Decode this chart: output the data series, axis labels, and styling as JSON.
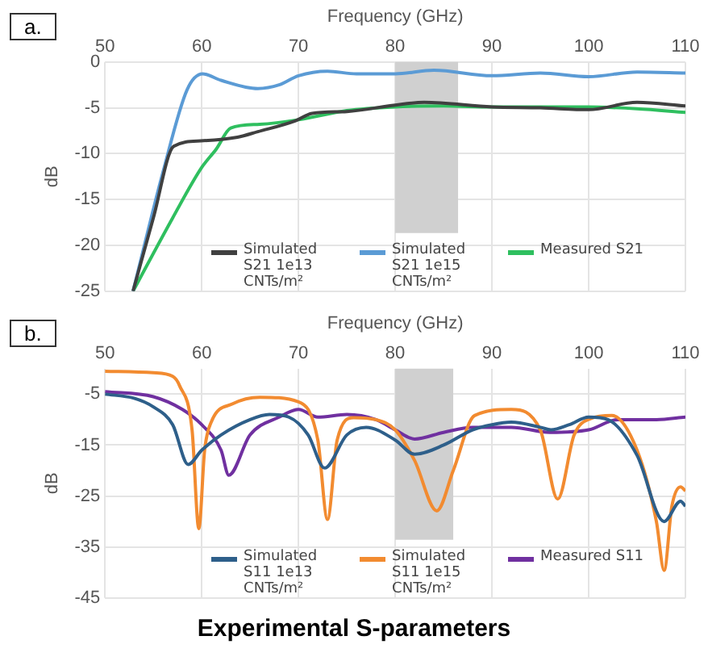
{
  "chart_data": [
    {
      "type": "line",
      "title": "a.",
      "xlabel": "Frequency (GHz)",
      "ylabel": "dB",
      "xlim": [
        50,
        110
      ],
      "xticks": [
        50,
        60,
        70,
        80,
        90,
        100,
        110
      ],
      "ylim": [
        -25,
        0
      ],
      "yticks": [
        0,
        -5,
        -10,
        -15,
        -20,
        -25
      ],
      "grid": true,
      "legend": "bottom",
      "bands": [
        {
          "axis": "x",
          "from": 80,
          "to": 86.5,
          "color": "#d0d0d0"
        }
      ],
      "series": [
        {
          "name": "Simulated S21 1e13 CNTs/m²",
          "color": "#404040",
          "x": [
            52.9,
            55,
            57.1,
            59.9,
            63.7,
            65.8,
            69.7,
            71.4,
            75,
            80,
            83,
            90,
            95,
            100,
            105,
            110
          ],
          "values": [
            -25,
            -17,
            -9.2,
            -8.6,
            -8.2,
            -7.6,
            -6.4,
            -5.6,
            -5.4,
            -4.7,
            -4.4,
            -4.9,
            -5,
            -5.2,
            -4.4,
            -4.8
          ]
        },
        {
          "name": "Simulated S21 1e15 CNTs/m²",
          "color": "#5b9bd5",
          "x": [
            52.9,
            56,
            58.5,
            60.1,
            62,
            65.8,
            68,
            70,
            73,
            76,
            80,
            84,
            90,
            95,
            100,
            105,
            110
          ],
          "values": [
            -25,
            -12,
            -3,
            -1.3,
            -2,
            -2.9,
            -2.5,
            -1.5,
            -1,
            -1.3,
            -1.3,
            -0.9,
            -1.5,
            -1.2,
            -1.6,
            -1.1,
            -1.2
          ]
        },
        {
          "name": "Measured S21",
          "color": "#2fbf5f",
          "x": [
            52.9,
            57,
            60,
            61.5,
            63,
            66,
            70,
            75,
            80,
            85,
            90,
            95,
            100,
            105,
            110
          ],
          "values": [
            -25,
            -17,
            -11.5,
            -9.5,
            -7.2,
            -6.8,
            -6.3,
            -5.3,
            -4.9,
            -4.8,
            -4.9,
            -4.9,
            -4.9,
            -5.1,
            -5.5
          ]
        }
      ]
    },
    {
      "type": "line",
      "title": "b.",
      "xlabel": "Frequency (GHz)",
      "ylabel": "dB",
      "xlim": [
        50,
        110
      ],
      "xticks": [
        50,
        60,
        70,
        80,
        90,
        100,
        110
      ],
      "ylim": [
        -45,
        0
      ],
      "yticks": [
        -5,
        -15,
        -25,
        -35,
        -45
      ],
      "grid": true,
      "legend": "bottom",
      "bands": [
        {
          "axis": "x",
          "from": 80,
          "to": 86,
          "color": "#d0d0d0"
        }
      ],
      "annotations": [
        "Experimental S-parameters"
      ],
      "series": [
        {
          "name": "Simulated S11 1e13 CNTs/m²",
          "color": "#2e5f8a",
          "x": [
            50,
            53,
            55,
            57,
            58.6,
            60,
            62,
            65,
            67,
            69,
            71,
            72.7,
            75,
            77,
            80,
            82,
            85,
            88,
            90,
            92,
            95,
            96.1,
            98,
            100,
            102,
            105,
            107.8,
            109.5,
            110
          ],
          "values": [
            -5,
            -5.8,
            -7.5,
            -11,
            -18.8,
            -16,
            -13,
            -10,
            -9,
            -9.5,
            -13,
            -19.5,
            -13,
            -11.5,
            -14,
            -16.8,
            -15,
            -12,
            -11,
            -10.5,
            -11.5,
            -12,
            -11,
            -9.5,
            -10,
            -17,
            -30,
            -26,
            -27
          ]
        },
        {
          "name": "Simulated S11 1e15 CNTs/m²",
          "color": "#f28b30",
          "x": [
            50,
            55,
            57,
            57.7,
            59,
            59.7,
            60.3,
            61,
            63.2,
            66,
            70,
            72,
            73,
            74,
            75.7,
            78,
            80,
            82,
            84.3,
            86,
            88.2,
            92,
            95,
            96.8,
            98.5,
            100.2,
            102.4,
            105,
            107,
            107.8,
            108.6,
            109.5,
            110
          ],
          "values": [
            -0.5,
            -0.8,
            -1.5,
            -3.3,
            -12,
            -31.4,
            -16,
            -10.4,
            -6.9,
            -5.6,
            -6.5,
            -14,
            -29.6,
            -14,
            -9.6,
            -10,
            -12,
            -18,
            -27.9,
            -20,
            -9.2,
            -8,
            -12,
            -25.6,
            -13,
            -9.8,
            -9.2,
            -16,
            -30,
            -39.6,
            -27,
            -23.2,
            -24
          ]
        },
        {
          "name": "Measured S11",
          "color": "#7030a0",
          "x": [
            50,
            55,
            58,
            60,
            62,
            62.8,
            65,
            68,
            70,
            72,
            75,
            78,
            80,
            82,
            85,
            88,
            92,
            96,
            100,
            103,
            107,
            110
          ],
          "values": [
            -4.5,
            -5.5,
            -8,
            -11,
            -16,
            -20.9,
            -13,
            -9.5,
            -8,
            -9.5,
            -9,
            -10,
            -12,
            -13.8,
            -12.5,
            -11.5,
            -11.5,
            -12.5,
            -12,
            -10,
            -10,
            -9.5
          ]
        }
      ]
    }
  ]
}
